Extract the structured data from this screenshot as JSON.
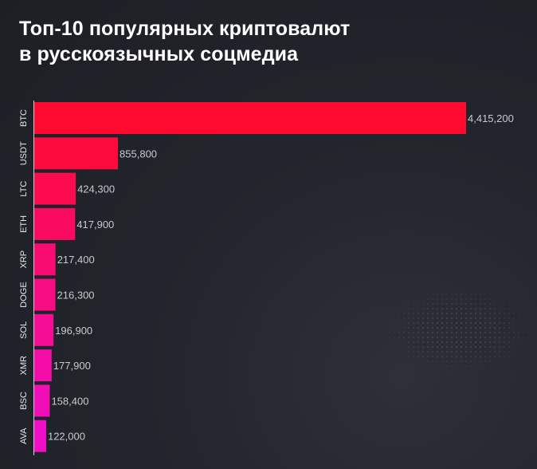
{
  "title_line1": "Топ-10 популярных криптовалют",
  "title_line2": "в русскоязычных соцмедиа",
  "colors": {
    "bar_start": "#ff0a2e",
    "bar_end": "#f00ec8",
    "value_label": "#c9cad0",
    "category_label": "#e8e8ec",
    "axis": "#cfd0d6"
  },
  "chart_data": {
    "type": "bar",
    "orientation": "horizontal",
    "title": "Топ-10 популярных криптовалют в русскоязычных соцмедиа",
    "categories": [
      "BTC",
      "USDT",
      "LTC",
      "ETH",
      "XRP",
      "DOGE",
      "SOL",
      "XMR",
      "BSC",
      "AVA"
    ],
    "values": [
      4415200,
      855800,
      424300,
      417900,
      217400,
      216300,
      196900,
      177900,
      158400,
      122000
    ],
    "value_labels": [
      "4,415,200",
      "855,800",
      "424,300",
      "417,900",
      "217,400",
      "216,300",
      "196,900",
      "177,900",
      "158,400",
      "122,000"
    ],
    "xlim": [
      0,
      4415200
    ],
    "grid": false,
    "legend": "none"
  }
}
